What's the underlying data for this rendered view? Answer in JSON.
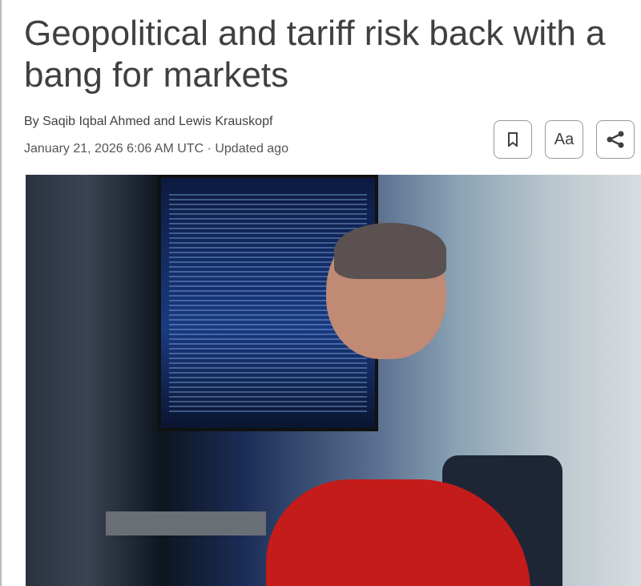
{
  "article": {
    "title": "Geopolitical and tariff risk back with a bang for markets",
    "byline": "By Saqib Iqbal Ahmed and Lewis Krauskopf",
    "date": "January 21, 2026 6:06 AM UTC · Updated ago"
  },
  "toolbar": {
    "bookmark_icon": "bookmark-icon",
    "text_size_label": "Aa",
    "share_icon": "share-icon"
  },
  "photo": {
    "description_icon": "photo"
  }
}
